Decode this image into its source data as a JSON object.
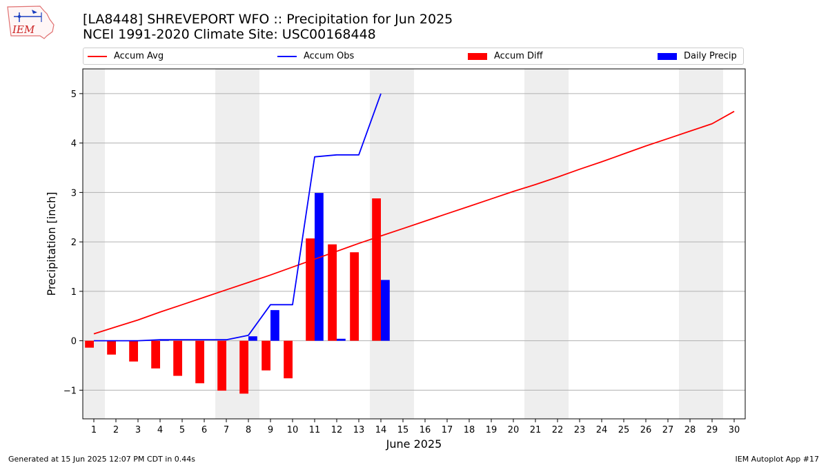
{
  "header": {
    "title_line1": "[LA8448] SHREVEPORT WFO :: Precipitation for Jun 2025",
    "title_line2": "NCEI 1991-2020 Climate Site: USC00168448",
    "logo_text": "IEM"
  },
  "legend": {
    "accum_avg": "Accum Avg",
    "accum_obs": "Accum Obs",
    "accum_diff": "Accum Diff",
    "daily_precip": "Daily Precip"
  },
  "footer": {
    "generated": "Generated at 15 Jun 2025 12:07 PM CDT in 0.44s",
    "app": "IEM Autoplot App #17"
  },
  "colors": {
    "accum_avg": "#ff0000",
    "accum_obs": "#0000ff",
    "accum_diff": "#ff0000",
    "daily_precip": "#0000ff",
    "weekend_shade": "#eeeeee",
    "grid": "#b0b0b0"
  },
  "chart_data": {
    "type": "bar",
    "xlabel": "June 2025",
    "ylabel": "Precipitation [inch]",
    "xlim": [
      0.5,
      30.5
    ],
    "ylim": [
      -1.58,
      5.5
    ],
    "yticks": [
      -1,
      0,
      1,
      2,
      3,
      4,
      5
    ],
    "ytick_labels": [
      "−1",
      "0",
      "1",
      "2",
      "3",
      "4",
      "5"
    ],
    "grid": "horizontal",
    "legend_position": "top",
    "days": [
      1,
      2,
      3,
      4,
      5,
      6,
      7,
      8,
      9,
      10,
      11,
      12,
      13,
      14,
      15,
      16,
      17,
      18,
      19,
      20,
      21,
      22,
      23,
      24,
      25,
      26,
      27,
      28,
      29,
      30
    ],
    "weekend_shaded_days": [
      1,
      7,
      8,
      14,
      15,
      21,
      22,
      28,
      29
    ],
    "series": [
      {
        "name": "Accum Avg",
        "kind": "line",
        "values": [
          0.14,
          0.28,
          0.42,
          0.58,
          0.73,
          0.88,
          1.03,
          1.18,
          1.33,
          1.49,
          1.65,
          1.81,
          1.97,
          2.12,
          2.27,
          2.42,
          2.57,
          2.72,
          2.87,
          3.02,
          3.16,
          3.31,
          3.47,
          3.62,
          3.78,
          3.94,
          4.09,
          4.24,
          4.39,
          4.64
        ]
      },
      {
        "name": "Accum Obs",
        "kind": "line",
        "values": [
          0.0,
          0.0,
          0.0,
          0.02,
          0.02,
          0.02,
          0.02,
          0.11,
          0.73,
          0.73,
          3.72,
          3.76,
          3.76,
          5.0
        ]
      },
      {
        "name": "Accum Diff",
        "kind": "bar",
        "values": [
          -0.14,
          -0.28,
          -0.42,
          -0.56,
          -0.71,
          -0.86,
          -1.01,
          -1.07,
          -0.6,
          -0.76,
          2.07,
          1.95,
          1.79,
          2.88
        ]
      },
      {
        "name": "Daily Precip",
        "kind": "bar",
        "values": [
          0.0,
          0.0,
          0.0,
          0.02,
          0.0,
          0.0,
          0.0,
          0.09,
          0.62,
          0.0,
          2.99,
          0.04,
          0.0,
          1.23
        ]
      }
    ]
  }
}
